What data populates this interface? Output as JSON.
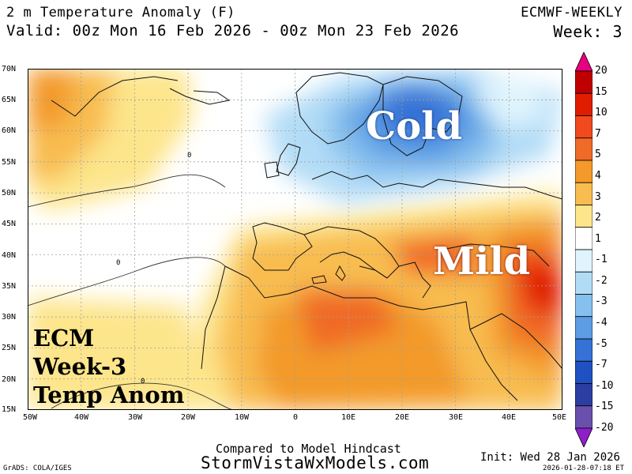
{
  "header": {
    "title": "2 m Temperature Anomaly (F)",
    "valid": "Valid: 00z Mon 16 Feb 2026 - 00z Mon 23 Feb 2026",
    "model": "ECMWF-WEEKLY",
    "week": "Week: 3"
  },
  "map": {
    "lat_labels": [
      "70N",
      "65N",
      "60N",
      "55N",
      "50N",
      "45N",
      "40N",
      "35N",
      "30N",
      "25N",
      "20N",
      "15N"
    ],
    "lon_labels": [
      "50W",
      "40W",
      "30W",
      "20W",
      "10W",
      "0",
      "10E",
      "20E",
      "30E",
      "40E",
      "50E"
    ],
    "contour_label": "0",
    "overlay_cold": "Cold",
    "overlay_mild": "Mild",
    "overlay_ecm": [
      "ECM",
      "Week-3",
      "Temp Anom"
    ]
  },
  "colorbar": {
    "levels": [
      "20",
      "15",
      "10",
      "7",
      "5",
      "4",
      "3",
      "2",
      "1",
      "-1",
      "-2",
      "-3",
      "-4",
      "-5",
      "-7",
      "-10",
      "-15",
      "-20"
    ],
    "colors": [
      "#e7007f",
      "#c00000",
      "#e11d00",
      "#f04a1e",
      "#f06a28",
      "#f39a2a",
      "#f8bc50",
      "#fde58b",
      "#ffffff",
      "#dff4fd",
      "#b2dcf6",
      "#86c0ee",
      "#5c9de4",
      "#3672d6",
      "#2051c2",
      "#2a3ea3",
      "#6a50ad",
      "#8e1fc9"
    ]
  },
  "footer": {
    "compared": "Compared to Model Hindcast",
    "site": "StormVistaWxModels.com",
    "grads": "GrADS: COLA/IGES",
    "init": "Init: Wed 28 Jan 2026",
    "stamp": "2026-01-28-07:18 ET"
  }
}
